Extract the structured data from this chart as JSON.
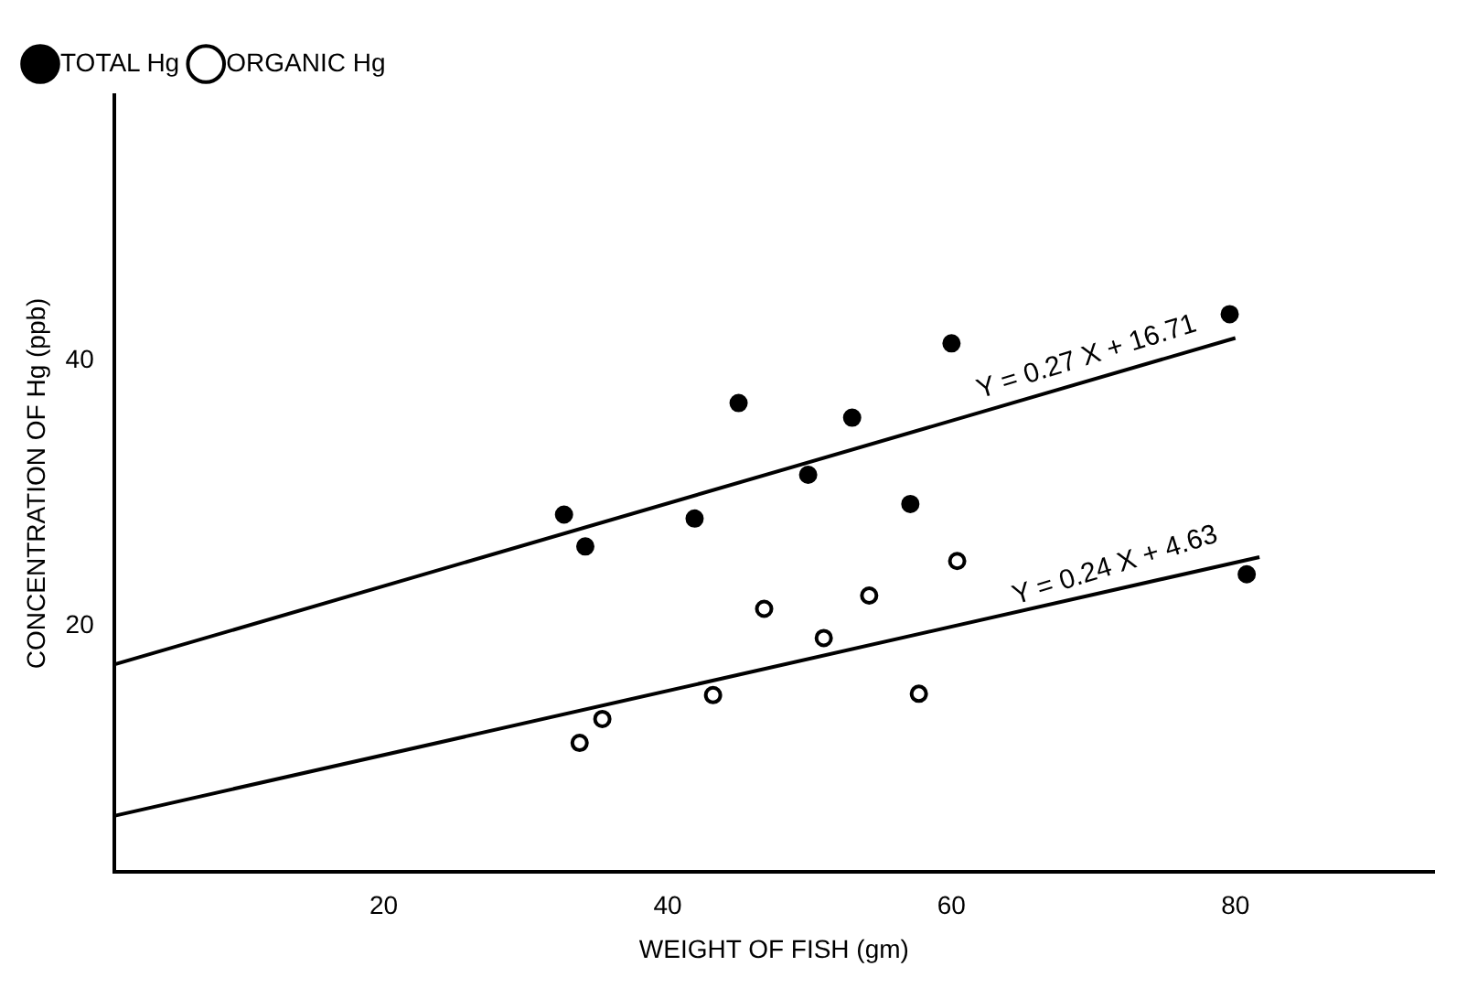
{
  "chart_data": {
    "type": "scatter",
    "xlabel": "WEIGHT OF FISH (gm)",
    "ylabel": "CONCENTRATION OF Hg (ppb)",
    "xlim": [
      1,
      94
    ],
    "ylim": [
      1.5,
      60
    ],
    "xticks": [
      20,
      40,
      60,
      80
    ],
    "yticks": [
      20,
      40
    ],
    "grid": false,
    "legend": "top left",
    "marker": "circle",
    "series": [
      {
        "name": "TOTAL Hg",
        "color": "#000000",
        "x": [
          32.7,
          34.2,
          41.9,
          45.0,
          49.9,
          53.0,
          57.1,
          60.0,
          79.6,
          80.8
        ],
        "values": [
          28.4,
          26.0,
          28.1,
          36.8,
          31.4,
          35.7,
          29.2,
          41.3,
          43.5,
          23.9
        ]
      },
      {
        "name": "ORGANIC Hg",
        "color": "#000000",
        "x": [
          33.8,
          35.4,
          43.2,
          46.8,
          51.0,
          54.2,
          57.7,
          60.4
        ],
        "values": [
          11.2,
          13.0,
          14.8,
          21.3,
          19.1,
          22.3,
          14.9,
          24.9
        ]
      },
      {
        "type": "line",
        "color": "#000000",
        "marker": "none",
        "x": [
          1,
          80
        ],
        "values": [
          17.1,
          41.7
        ]
      },
      {
        "type": "line",
        "color": "#000000",
        "marker": "none",
        "x": [
          1,
          81.7
        ],
        "values": [
          5.7,
          25.2
        ]
      }
    ],
    "annotations": [
      {
        "text": "Y = 0.27 X + 16.71",
        "x": 70,
        "y": 38.6
      },
      {
        "text": "Y = 0.24 X + 4.63",
        "x": 72,
        "y": 22.9
      }
    ]
  }
}
